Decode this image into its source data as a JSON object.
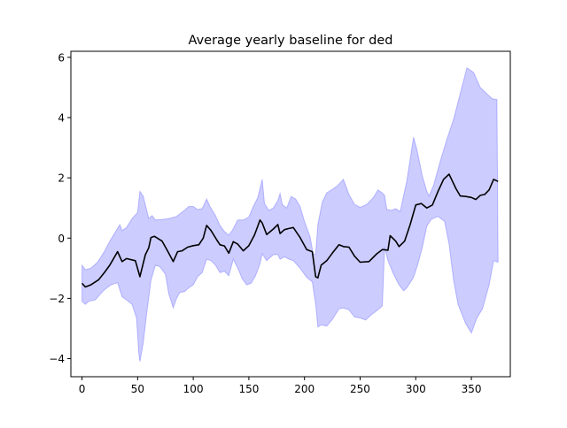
{
  "chart_data": {
    "type": "line",
    "title": "Average yearly baseline for ded",
    "xlabel": "",
    "ylabel": "",
    "xlim": [
      -10,
      385
    ],
    "ylim": [
      -4.6,
      6.2
    ],
    "x_ticks": [
      0,
      50,
      100,
      150,
      200,
      250,
      300,
      350
    ],
    "y_ticks": [
      -4,
      -2,
      0,
      2,
      4,
      6
    ],
    "x_tick_labels": [
      "0",
      "50",
      "100",
      "150",
      "200",
      "250",
      "300",
      "350"
    ],
    "y_tick_labels": [
      "−4",
      "−2",
      "0",
      "2",
      "4",
      "6"
    ],
    "grid": false,
    "legend": "none",
    "colors": {
      "line": "#000000",
      "band_fill": "#0000ff",
      "band_fill_opacity": 0.2
    },
    "series": [
      {
        "values": [
          [
            0,
            -1.5
          ],
          [
            3,
            -1.62
          ],
          [
            8,
            -1.55
          ],
          [
            15,
            -1.38
          ],
          [
            20,
            -1.15
          ],
          [
            25,
            -0.9
          ],
          [
            32,
            -0.45
          ],
          [
            36,
            -0.78
          ],
          [
            40,
            -0.68
          ],
          [
            48,
            -0.75
          ],
          [
            52,
            -1.28
          ],
          [
            57,
            -0.55
          ],
          [
            60,
            -0.32
          ],
          [
            62,
            0.02
          ],
          [
            65,
            0.06
          ],
          [
            72,
            -0.1
          ],
          [
            78,
            -0.5
          ],
          [
            82,
            -0.78
          ],
          [
            86,
            -0.45
          ],
          [
            90,
            -0.42
          ],
          [
            95,
            -0.3
          ],
          [
            100,
            -0.25
          ],
          [
            105,
            -0.22
          ],
          [
            109,
            0.0
          ],
          [
            112,
            0.42
          ],
          [
            116,
            0.25
          ],
          [
            121,
            -0.05
          ],
          [
            124,
            -0.22
          ],
          [
            128,
            -0.26
          ],
          [
            132,
            -0.5
          ],
          [
            136,
            -0.12
          ],
          [
            140,
            -0.2
          ],
          [
            145,
            -0.42
          ],
          [
            150,
            -0.25
          ],
          [
            155,
            0.1
          ],
          [
            158,
            0.4
          ],
          [
            160,
            0.6
          ],
          [
            162,
            0.5
          ],
          [
            166,
            0.12
          ],
          [
            172,
            0.3
          ],
          [
            176,
            0.45
          ],
          [
            178,
            0.15
          ],
          [
            182,
            0.28
          ],
          [
            186,
            0.32
          ],
          [
            190,
            0.35
          ],
          [
            196,
            0.02
          ],
          [
            202,
            -0.38
          ],
          [
            207,
            -0.45
          ],
          [
            210,
            -1.28
          ],
          [
            212,
            -1.32
          ],
          [
            215,
            -0.9
          ],
          [
            220,
            -0.75
          ],
          [
            225,
            -0.5
          ],
          [
            231,
            -0.22
          ],
          [
            235,
            -0.28
          ],
          [
            240,
            -0.3
          ],
          [
            245,
            -0.6
          ],
          [
            250,
            -0.8
          ],
          [
            258,
            -0.78
          ],
          [
            265,
            -0.52
          ],
          [
            270,
            -0.38
          ],
          [
            275,
            -0.4
          ],
          [
            277,
            0.08
          ],
          [
            282,
            -0.1
          ],
          [
            285,
            -0.28
          ],
          [
            290,
            -0.1
          ],
          [
            295,
            0.45
          ],
          [
            300,
            1.1
          ],
          [
            305,
            1.15
          ],
          [
            310,
            1.0
          ],
          [
            315,
            1.1
          ],
          [
            320,
            1.55
          ],
          [
            325,
            1.95
          ],
          [
            330,
            2.12
          ],
          [
            336,
            1.65
          ],
          [
            340,
            1.4
          ],
          [
            345,
            1.38
          ],
          [
            350,
            1.35
          ],
          [
            354,
            1.28
          ],
          [
            358,
            1.42
          ],
          [
            362,
            1.45
          ],
          [
            366,
            1.6
          ],
          [
            370,
            1.95
          ],
          [
            374,
            1.88
          ]
        ]
      }
    ],
    "band_upper": [
      [
        0,
        -0.9
      ],
      [
        3,
        -1.05
      ],
      [
        8,
        -1.0
      ],
      [
        14,
        -0.8
      ],
      [
        20,
        -0.45
      ],
      [
        25,
        -0.1
      ],
      [
        30,
        0.2
      ],
      [
        34,
        0.45
      ],
      [
        36,
        0.25
      ],
      [
        40,
        0.35
      ],
      [
        45,
        0.65
      ],
      [
        50,
        0.85
      ],
      [
        52,
        1.55
      ],
      [
        55,
        1.4
      ],
      [
        58,
        0.95
      ],
      [
        60,
        0.65
      ],
      [
        63,
        0.75
      ],
      [
        66,
        0.6
      ],
      [
        72,
        0.62
      ],
      [
        78,
        0.65
      ],
      [
        85,
        0.72
      ],
      [
        92,
        0.92
      ],
      [
        96,
        1.05
      ],
      [
        100,
        1.05
      ],
      [
        104,
        0.95
      ],
      [
        108,
        0.98
      ],
      [
        112,
        1.3
      ],
      [
        115,
        1.05
      ],
      [
        120,
        0.75
      ],
      [
        124,
        0.42
      ],
      [
        128,
        0.22
      ],
      [
        132,
        0.1
      ],
      [
        135,
        0.25
      ],
      [
        140,
        0.6
      ],
      [
        145,
        0.6
      ],
      [
        150,
        0.7
      ],
      [
        154,
        1.05
      ],
      [
        158,
        1.35
      ],
      [
        162,
        1.95
      ],
      [
        164,
        1.15
      ],
      [
        168,
        0.92
      ],
      [
        172,
        1.0
      ],
      [
        176,
        1.25
      ],
      [
        178,
        1.48
      ],
      [
        180,
        1.12
      ],
      [
        184,
        1.0
      ],
      [
        188,
        1.38
      ],
      [
        192,
        1.3
      ],
      [
        196,
        1.05
      ],
      [
        200,
        0.55
      ],
      [
        205,
        0.05
      ],
      [
        208,
        -0.55
      ],
      [
        210,
        -0.52
      ],
      [
        212,
        0.45
      ],
      [
        216,
        1.2
      ],
      [
        220,
        1.5
      ],
      [
        225,
        1.62
      ],
      [
        230,
        1.75
      ],
      [
        235,
        1.95
      ],
      [
        240,
        1.45
      ],
      [
        245,
        1.12
      ],
      [
        250,
        1.02
      ],
      [
        256,
        1.12
      ],
      [
        262,
        1.35
      ],
      [
        266,
        1.6
      ],
      [
        270,
        1.5
      ],
      [
        272,
        1.42
      ],
      [
        274,
        0.95
      ],
      [
        278,
        0.92
      ],
      [
        282,
        0.98
      ],
      [
        286,
        0.88
      ],
      [
        292,
        1.9
      ],
      [
        298,
        3.35
      ],
      [
        301,
        2.95
      ],
      [
        306,
        2.05
      ],
      [
        310,
        1.55
      ],
      [
        312,
        1.4
      ],
      [
        316,
        1.75
      ],
      [
        322,
        2.55
      ],
      [
        328,
        3.28
      ],
      [
        334,
        3.95
      ],
      [
        340,
        4.8
      ],
      [
        346,
        5.65
      ],
      [
        352,
        5.5
      ],
      [
        358,
        5.0
      ],
      [
        365,
        4.75
      ],
      [
        369,
        4.62
      ],
      [
        373,
        4.6
      ]
    ],
    "band_lower": [
      [
        0,
        -2.1
      ],
      [
        3,
        -2.2
      ],
      [
        6,
        -2.1
      ],
      [
        12,
        -2.05
      ],
      [
        16,
        -1.88
      ],
      [
        20,
        -1.72
      ],
      [
        26,
        -1.55
      ],
      [
        32,
        -1.48
      ],
      [
        36,
        -1.95
      ],
      [
        40,
        -2.05
      ],
      [
        45,
        -2.2
      ],
      [
        49,
        -2.65
      ],
      [
        51,
        -3.8
      ],
      [
        52,
        -4.1
      ],
      [
        55,
        -3.5
      ],
      [
        58,
        -2.55
      ],
      [
        62,
        -1.4
      ],
      [
        66,
        -0.9
      ],
      [
        70,
        -0.95
      ],
      [
        75,
        -1.2
      ],
      [
        78,
        -1.85
      ],
      [
        82,
        -2.32
      ],
      [
        85,
        -2.0
      ],
      [
        88,
        -1.8
      ],
      [
        92,
        -1.78
      ],
      [
        96,
        -1.65
      ],
      [
        100,
        -1.55
      ],
      [
        104,
        -1.28
      ],
      [
        108,
        -1.15
      ],
      [
        112,
        -0.7
      ],
      [
        116,
        -0.75
      ],
      [
        120,
        -0.9
      ],
      [
        124,
        -1.15
      ],
      [
        128,
        -1.1
      ],
      [
        132,
        -1.25
      ],
      [
        136,
        -0.7
      ],
      [
        140,
        -1.0
      ],
      [
        144,
        -1.35
      ],
      [
        148,
        -1.55
      ],
      [
        152,
        -1.5
      ],
      [
        156,
        -1.25
      ],
      [
        160,
        -0.85
      ],
      [
        162,
        -0.52
      ],
      [
        166,
        -0.75
      ],
      [
        172,
        -0.55
      ],
      [
        176,
        -0.55
      ],
      [
        178,
        -0.7
      ],
      [
        182,
        -0.62
      ],
      [
        186,
        -0.7
      ],
      [
        190,
        -0.75
      ],
      [
        196,
        -1.0
      ],
      [
        202,
        -1.3
      ],
      [
        207,
        -1.45
      ],
      [
        210,
        -2.2
      ],
      [
        212,
        -2.95
      ],
      [
        215,
        -2.88
      ],
      [
        220,
        -2.92
      ],
      [
        225,
        -2.7
      ],
      [
        231,
        -2.35
      ],
      [
        235,
        -2.32
      ],
      [
        240,
        -2.38
      ],
      [
        245,
        -2.62
      ],
      [
        250,
        -2.65
      ],
      [
        255,
        -2.72
      ],
      [
        260,
        -2.55
      ],
      [
        266,
        -2.38
      ],
      [
        270,
        -2.25
      ],
      [
        272,
        -0.3
      ],
      [
        275,
        -0.75
      ],
      [
        280,
        -1.2
      ],
      [
        285,
        -1.55
      ],
      [
        289,
        -1.75
      ],
      [
        292,
        -1.65
      ],
      [
        298,
        -1.3
      ],
      [
        302,
        -0.85
      ],
      [
        306,
        -0.3
      ],
      [
        310,
        0.4
      ],
      [
        314,
        0.62
      ],
      [
        320,
        0.72
      ],
      [
        326,
        0.55
      ],
      [
        330,
        -0.2
      ],
      [
        334,
        -1.4
      ],
      [
        338,
        -2.2
      ],
      [
        345,
        -2.85
      ],
      [
        350,
        -3.15
      ],
      [
        355,
        -2.65
      ],
      [
        360,
        -2.35
      ],
      [
        366,
        -1.55
      ],
      [
        370,
        -0.75
      ],
      [
        374,
        -0.8
      ]
    ]
  }
}
